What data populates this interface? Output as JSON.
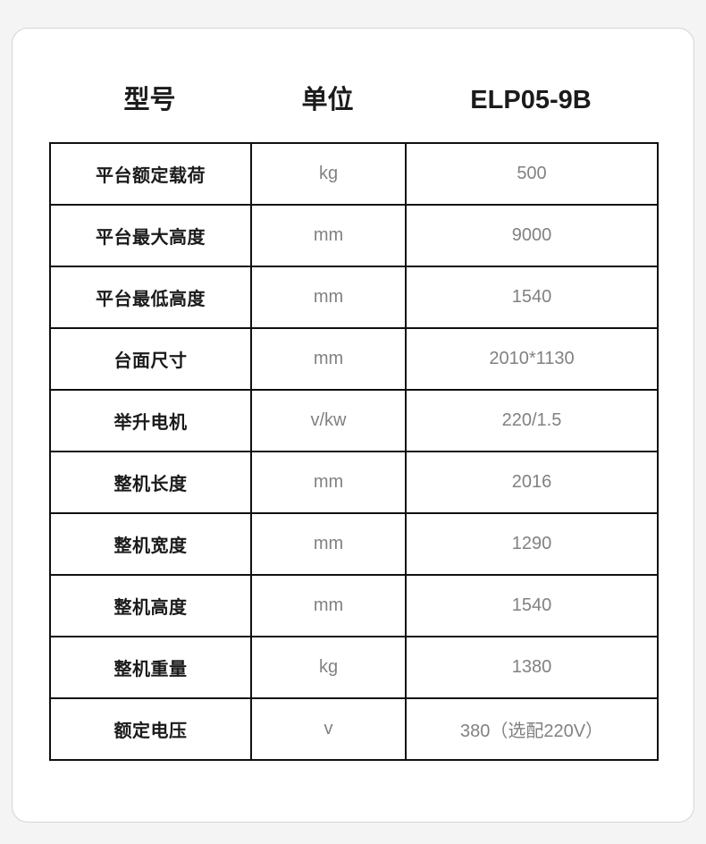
{
  "colors": {
    "page_bg": "#f4f4f5",
    "card_bg": "#ffffff",
    "card_border": "#d4d4d4",
    "grid": "#101010",
    "label_text": "#1b1b1b",
    "value_text": "#818181"
  },
  "table": {
    "header": {
      "model_label": "型号",
      "unit_label": "单位",
      "model_value": "ELP05-9B"
    },
    "rows": [
      {
        "label": "平台额定载荷",
        "unit": "kg",
        "value": "500"
      },
      {
        "label": "平台最大高度",
        "unit": "mm",
        "value": "9000"
      },
      {
        "label": "平台最低高度",
        "unit": "mm",
        "value": "1540"
      },
      {
        "label": "台面尺寸",
        "unit": "mm",
        "value": "2010*1130"
      },
      {
        "label": "举升电机",
        "unit": "v/kw",
        "value": "220/1.5"
      },
      {
        "label": "整机长度",
        "unit": "mm",
        "value": "2016"
      },
      {
        "label": "整机宽度",
        "unit": "mm",
        "value": "1290"
      },
      {
        "label": "整机高度",
        "unit": "mm",
        "value": "1540"
      },
      {
        "label": "整机重量",
        "unit": "kg",
        "value": "1380"
      },
      {
        "label": "额定电压",
        "unit": "v",
        "value": "380（选配220V）"
      }
    ]
  }
}
